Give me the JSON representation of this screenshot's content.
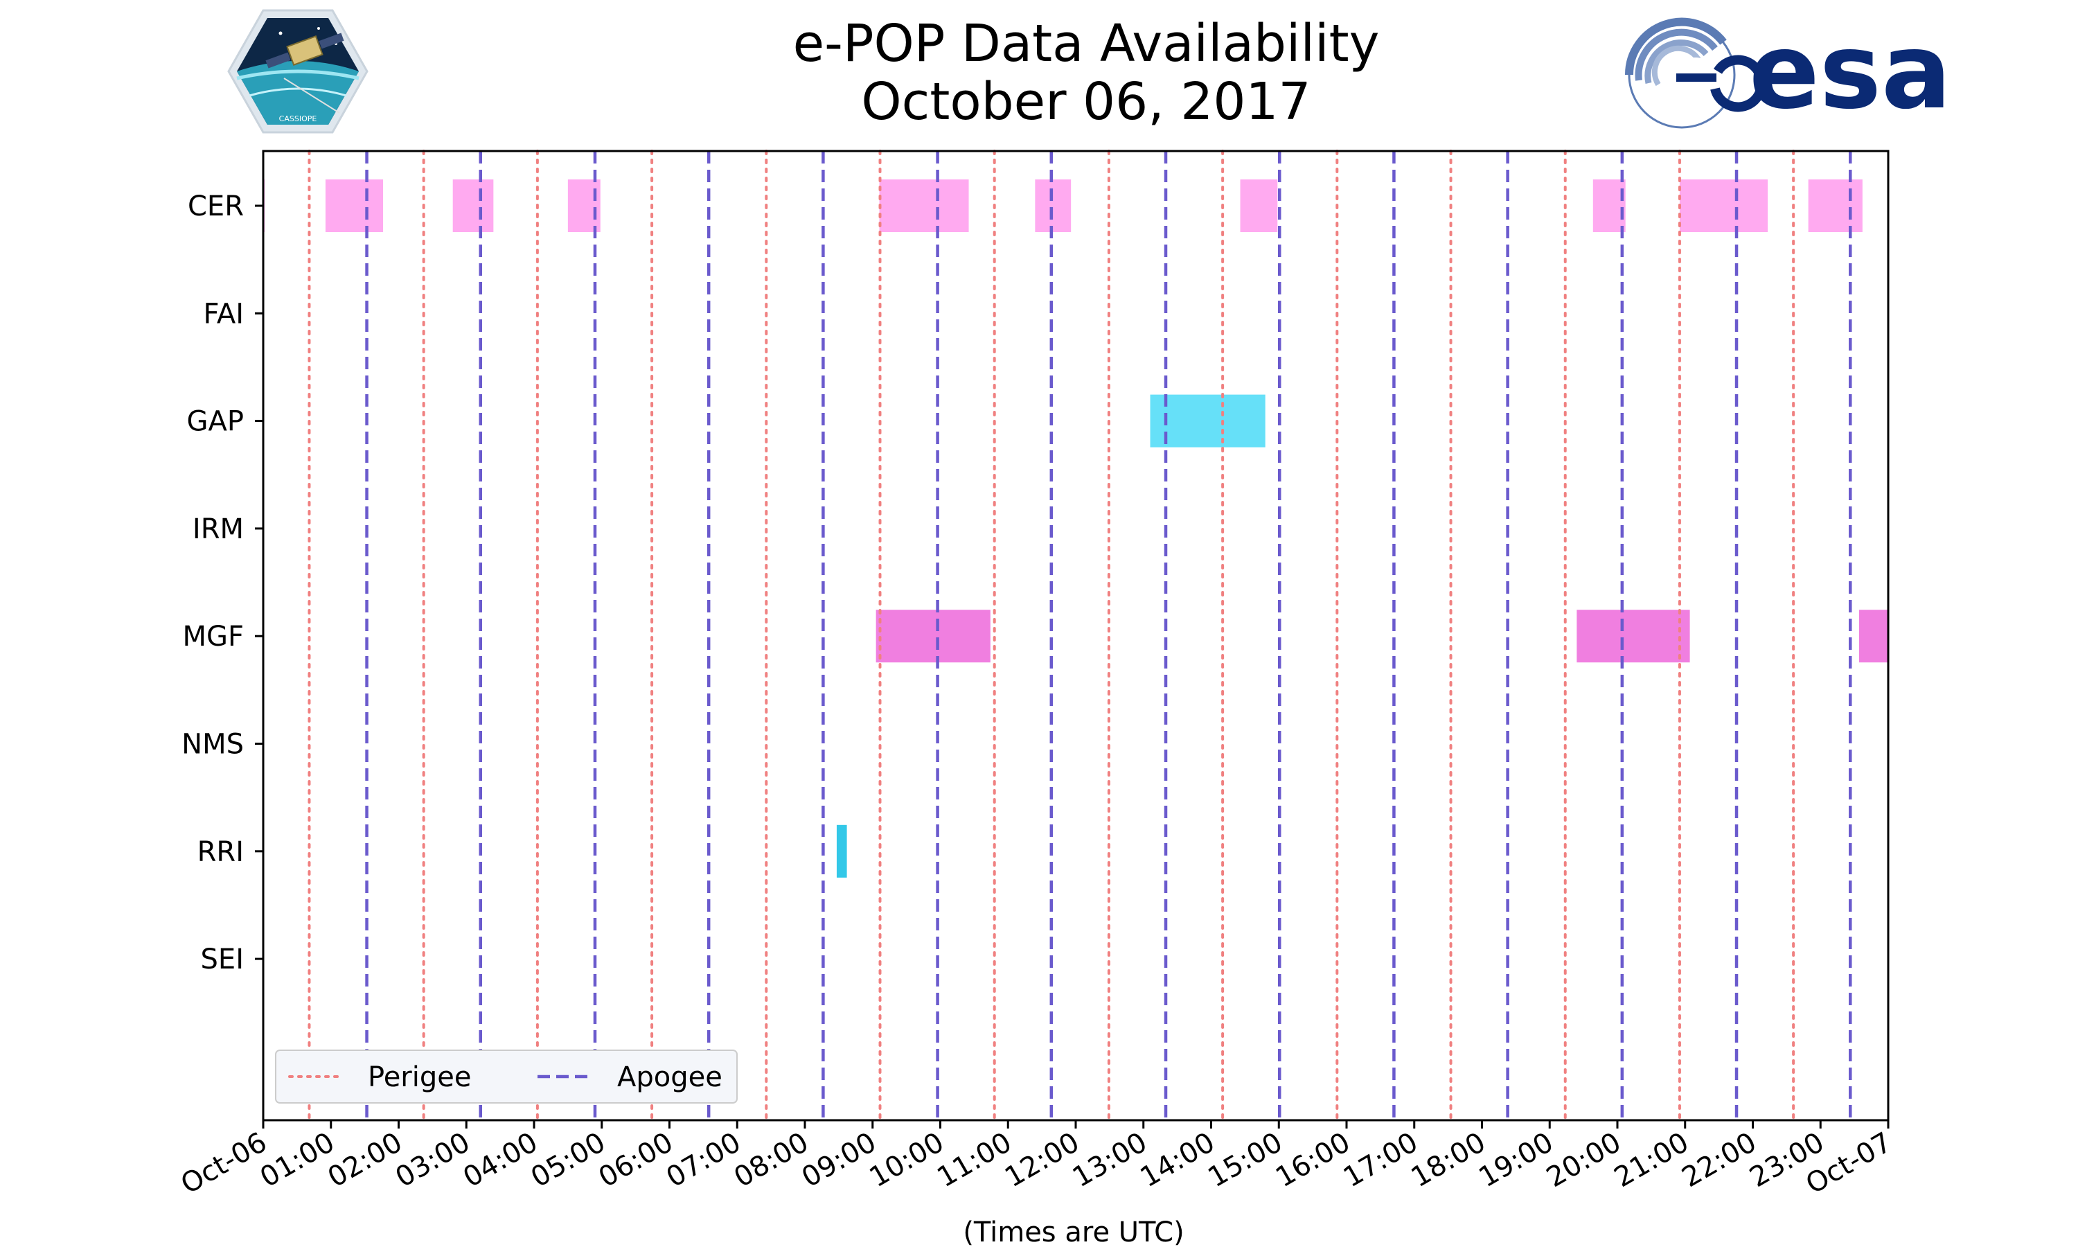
{
  "chart_data": {
    "type": "timeline",
    "title": "e-POP Data Availability",
    "subtitle": "October 06, 2017",
    "xlabel": "(Times are UTC)",
    "ylabel": "",
    "x_range_hours": [
      0,
      24
    ],
    "x_tick_labels": [
      "Oct-06",
      "01:00",
      "02:00",
      "03:00",
      "04:00",
      "05:00",
      "06:00",
      "07:00",
      "08:00",
      "09:00",
      "10:00",
      "11:00",
      "12:00",
      "13:00",
      "14:00",
      "15:00",
      "16:00",
      "17:00",
      "18:00",
      "19:00",
      "20:00",
      "21:00",
      "22:00",
      "23:00",
      "Oct-07"
    ],
    "instruments": [
      "CER",
      "FAI",
      "GAP",
      "IRM",
      "MGF",
      "NMS",
      "RRI",
      "SEI"
    ],
    "intervals": {
      "CER": [
        [
          0.0,
          0.02
        ],
        [
          0.92,
          1.77
        ],
        [
          2.8,
          3.4
        ],
        [
          4.5,
          4.98
        ],
        [
          9.1,
          10.42
        ],
        [
          11.4,
          11.93
        ],
        [
          14.43,
          14.98
        ],
        [
          19.64,
          20.12
        ],
        [
          20.92,
          22.22
        ],
        [
          22.82,
          23.62
        ]
      ],
      "FAI": [],
      "GAP": [
        [
          13.1,
          14.8
        ]
      ],
      "IRM": [],
      "MGF": [
        [
          9.05,
          10.74
        ],
        [
          19.4,
          21.07
        ],
        [
          23.57,
          24.0
        ]
      ],
      "NMS": [],
      "RRI": [
        [
          8.47,
          8.62
        ]
      ],
      "SEI": []
    },
    "interval_colors": {
      "CER": "#ffaaf0",
      "FAI": "#ff88e8",
      "GAP": "#66e0f8",
      "IRM": "#ff88e8",
      "MGF": "#f07fe0",
      "NMS": "#ff88e8",
      "RRI": "#33c8e8",
      "SEI": "#ff88e8"
    },
    "perigee_hours": [
      0.68,
      2.37,
      4.05,
      5.74,
      7.43,
      9.11,
      10.8,
      12.49,
      14.17,
      15.86,
      17.54,
      19.23,
      20.92,
      22.6
    ],
    "apogee_hours": [
      1.53,
      3.21,
      4.9,
      6.58,
      8.27,
      9.96,
      11.64,
      13.33,
      15.01,
      16.7,
      18.38,
      20.07,
      21.76,
      23.44
    ],
    "perigee_color": "#f08080",
    "apogee_color": "#6a5acd",
    "legend": {
      "position": "lower-left",
      "entries": [
        "Perigee",
        "Apogee"
      ]
    }
  },
  "logos": {
    "mission_name": "CASSIOPE",
    "agency_name": "esa"
  }
}
